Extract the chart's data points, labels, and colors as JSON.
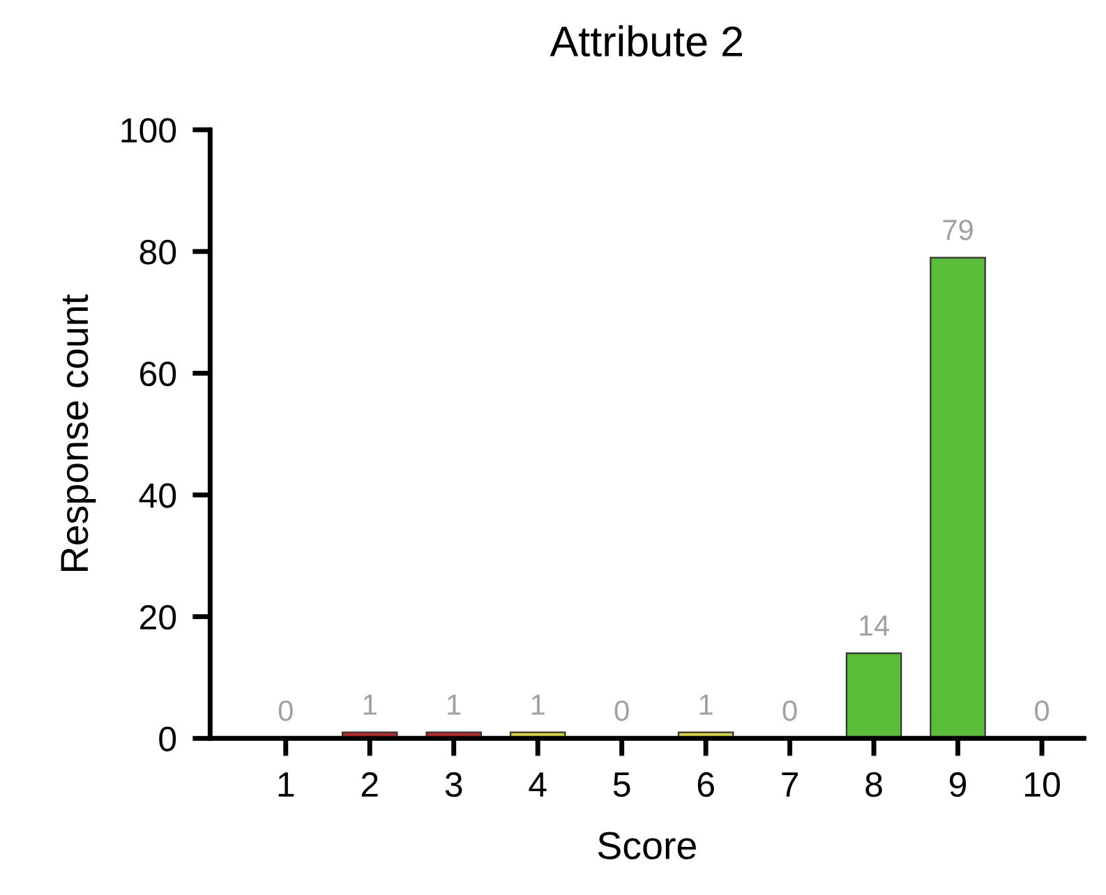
{
  "chart_data": {
    "type": "bar",
    "title": "Attribute 2",
    "xlabel": "Score",
    "ylabel": "Response count",
    "categories": [
      "1",
      "2",
      "3",
      "4",
      "5",
      "6",
      "7",
      "8",
      "9",
      "10"
    ],
    "values": [
      0,
      1,
      1,
      1,
      0,
      1,
      0,
      14,
      79,
      0
    ],
    "colors": [
      null,
      "#c0272d",
      "#c0272d",
      "#d4d43a",
      null,
      "#d4d43a",
      null,
      "#5abd3a",
      "#5abd3a",
      null
    ],
    "ylim": [
      0,
      100
    ],
    "yticks": [
      0,
      20,
      40,
      60,
      80,
      100
    ],
    "data_labels": true,
    "grid": false,
    "legend": false
  }
}
